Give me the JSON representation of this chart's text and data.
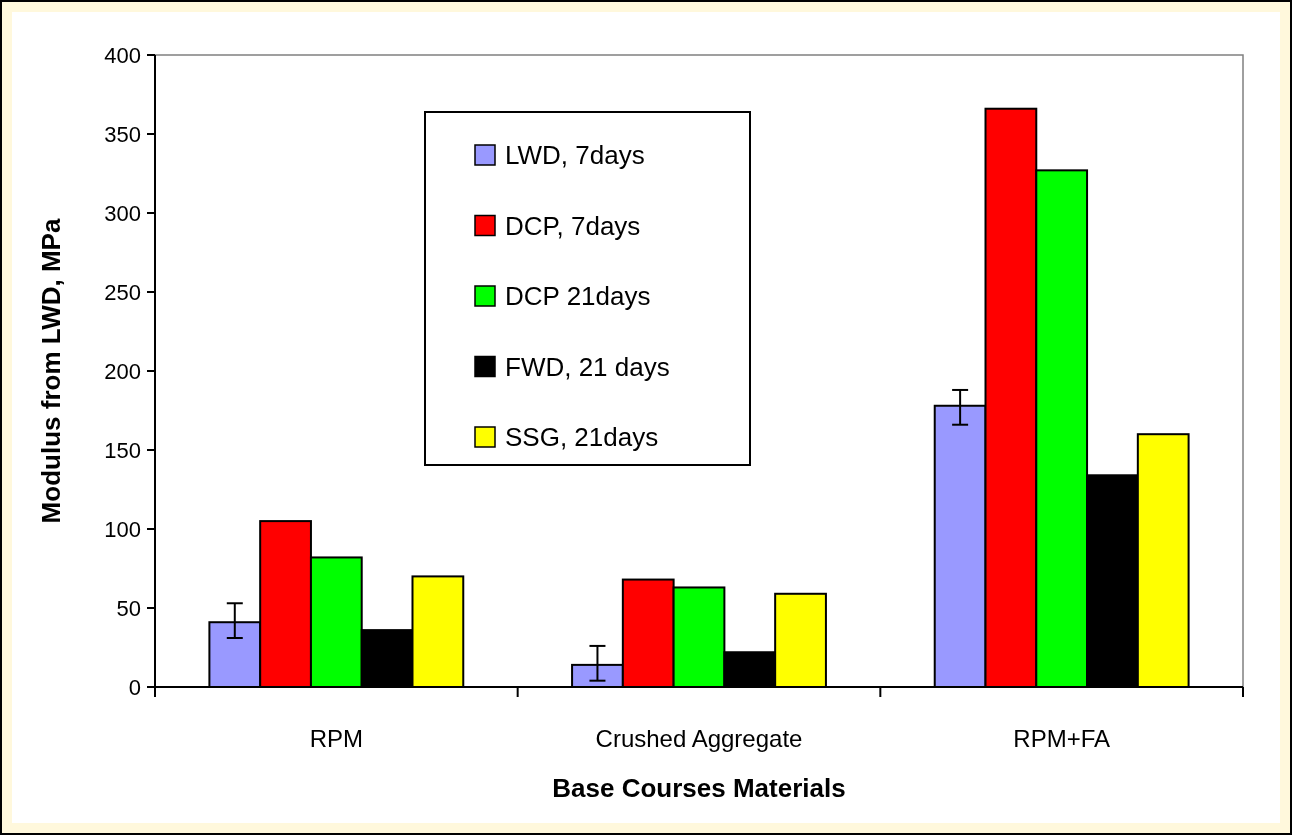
{
  "chart_data": {
    "type": "bar",
    "xlabel": "Base Courses Materials",
    "ylabel": "Modulus from LWD, MPa",
    "categories": [
      "RPM",
      "Crushed Aggregate",
      "RPM+FA"
    ],
    "series": [
      {
        "name": "LWD, 7days",
        "color": "#9999ff",
        "values": [
          41,
          14,
          178
        ],
        "errors": [
          [
            31,
            53
          ],
          [
            4,
            26
          ],
          [
            166,
            188
          ]
        ]
      },
      {
        "name": "DCP, 7days",
        "color": "#ff0000",
        "values": [
          105,
          68,
          366
        ]
      },
      {
        "name": "DCP 21days",
        "color": "#00ff00",
        "values": [
          82,
          63,
          327
        ]
      },
      {
        "name": "FWD, 21 days",
        "color": "#000000",
        "values": [
          36,
          22,
          134
        ]
      },
      {
        "name": "SSG, 21days",
        "color": "#ffff00",
        "values": [
          70,
          59,
          160
        ]
      }
    ],
    "ylim": [
      0,
      400
    ],
    "yticks": [
      0,
      50,
      100,
      150,
      200,
      250,
      300,
      350,
      400
    ],
    "grid": false,
    "legend": "top"
  }
}
